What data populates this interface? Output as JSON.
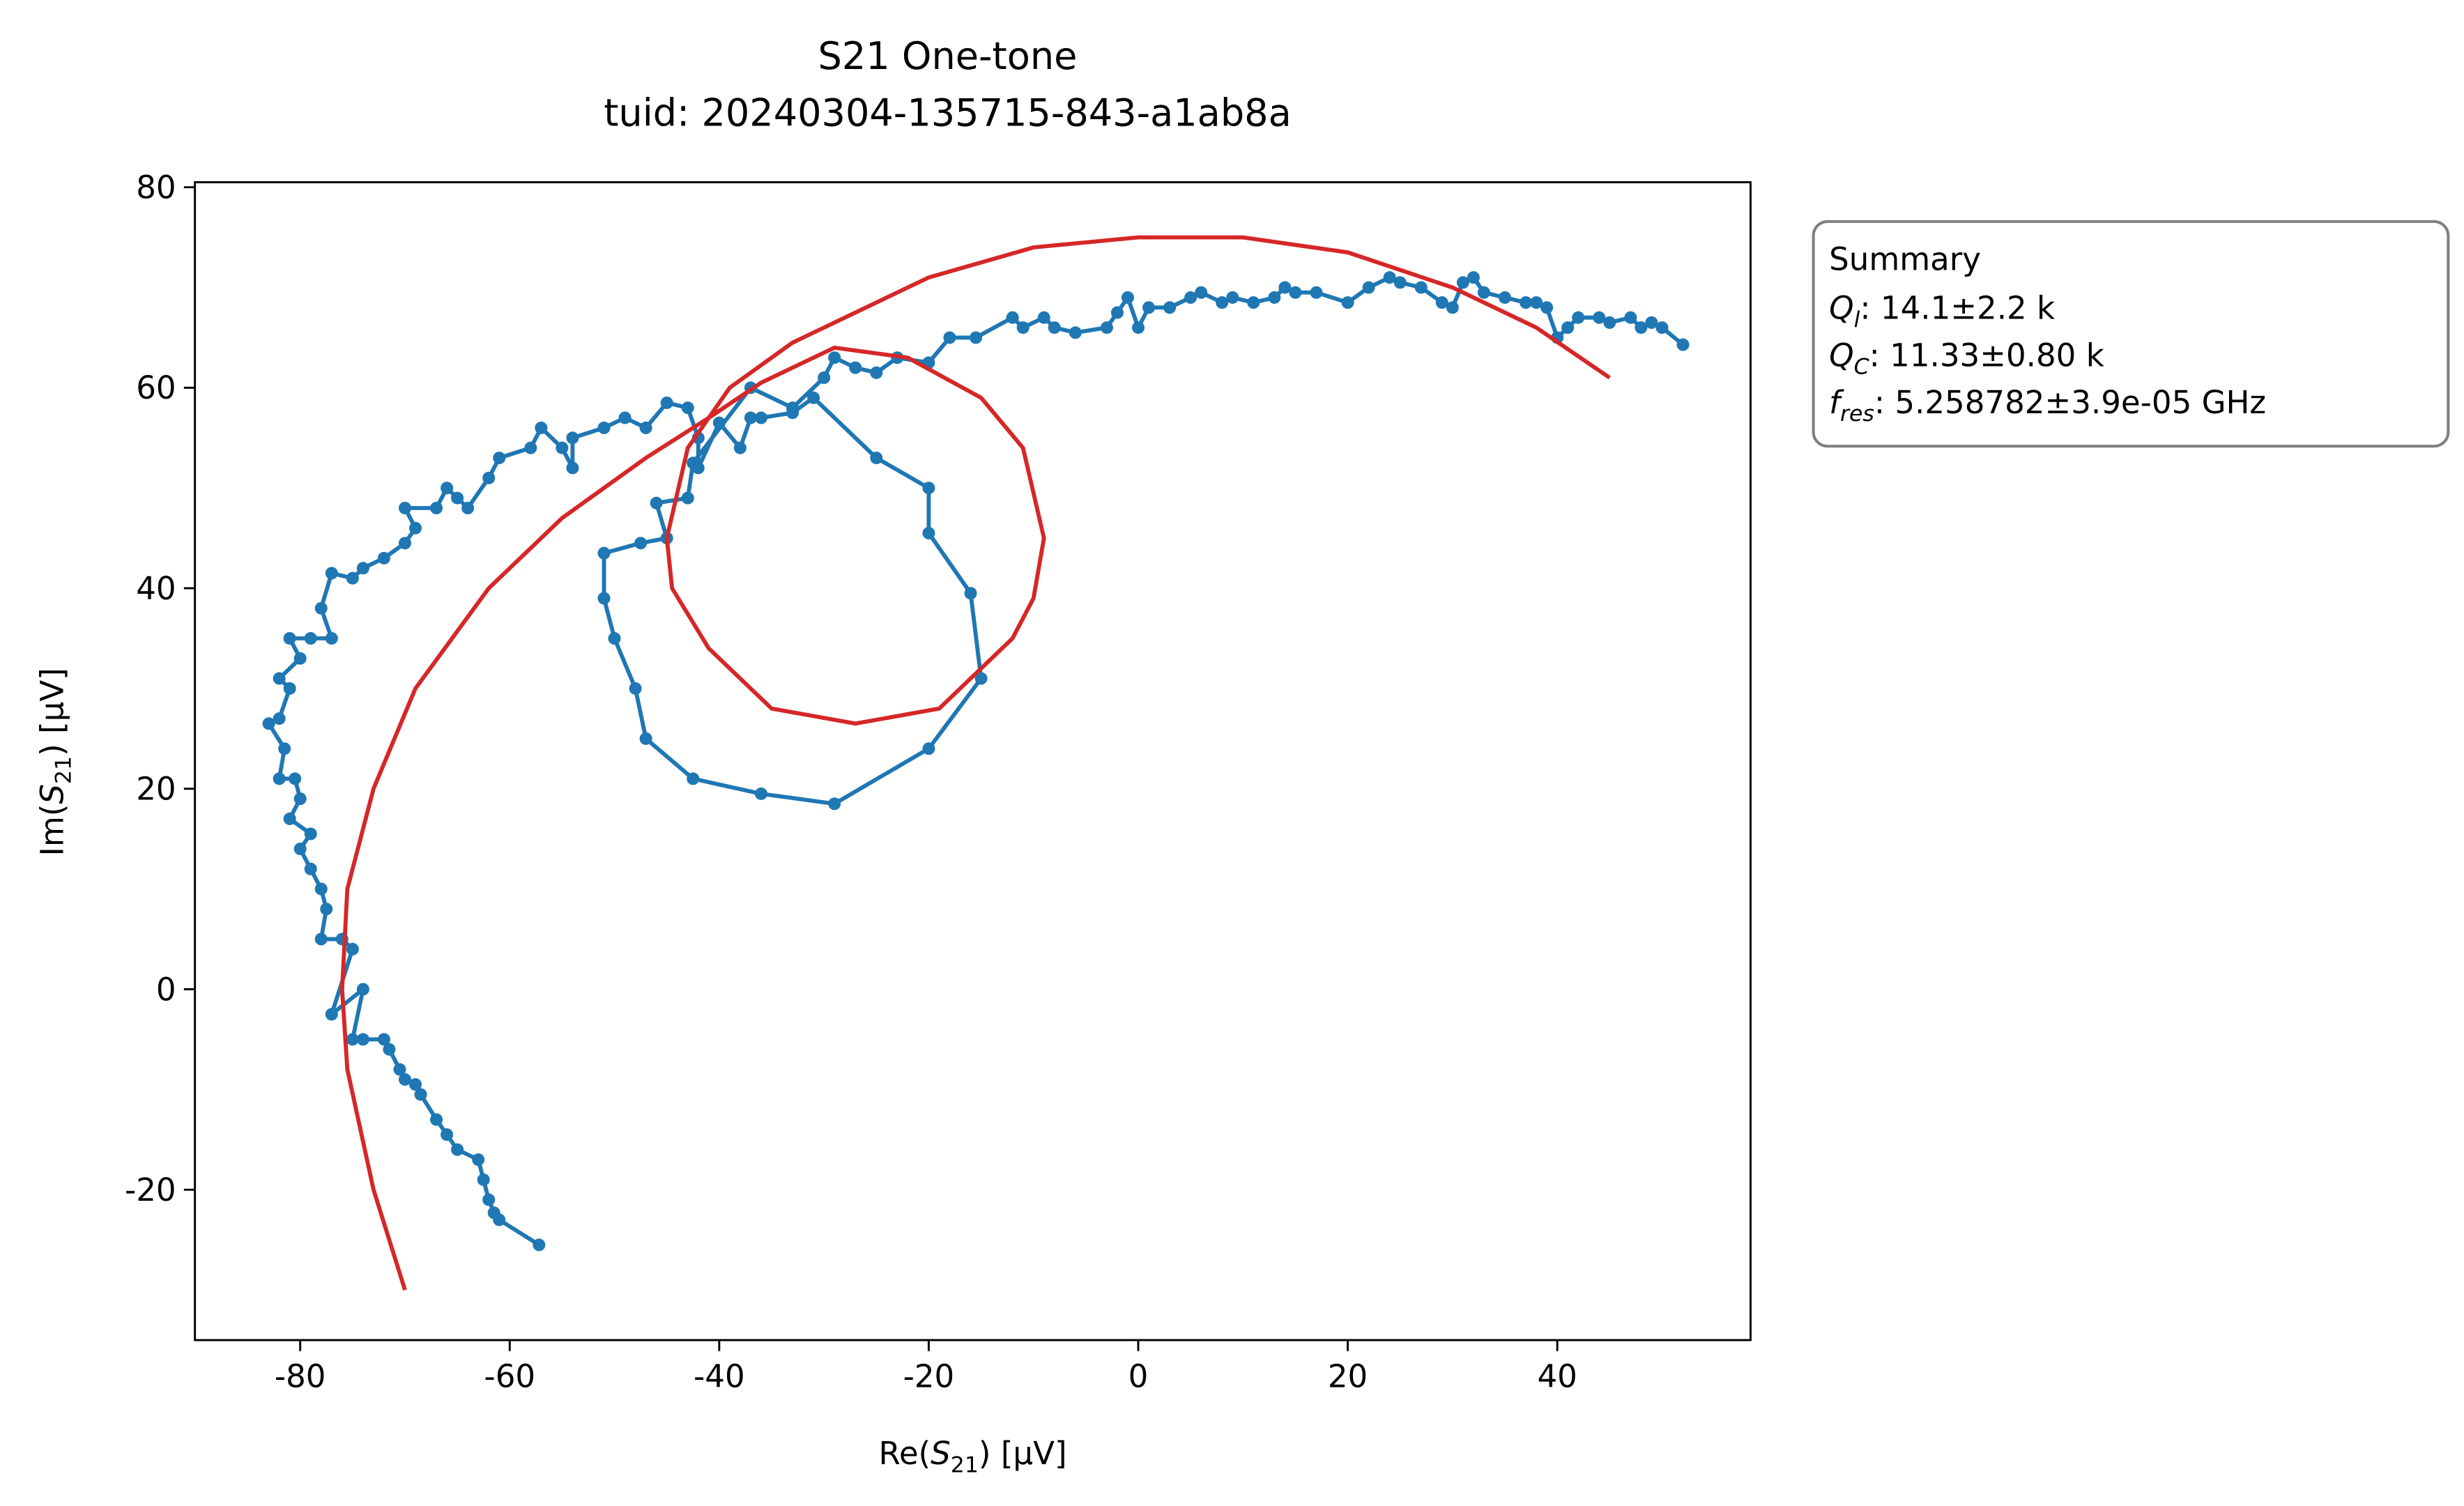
{
  "chart_data": {
    "type": "line",
    "title": "S21 One-tone",
    "subtitle": "tuid: 20240304-135715-843-a1ab8a",
    "xlabel": {
      "prefix": "Re(",
      "symbol": "S",
      "subscript": "21",
      "suffix": ") [µV]"
    },
    "ylabel": {
      "prefix": "Im(",
      "symbol": "S",
      "subscript": "21",
      "suffix": ") [µV]"
    },
    "xlim": [
      -90.05,
      58.45
    ],
    "ylim": [
      -35.0,
      80.5
    ],
    "xticks": [
      -80,
      -60,
      -40,
      -20,
      0,
      20,
      40
    ],
    "yticks": [
      -20,
      0,
      20,
      40,
      60,
      80
    ],
    "annotation": {
      "heading": "Summary",
      "lines": [
        {
          "symbol": "Q",
          "subscript": "l",
          "text": ": 14.1±2.2 k"
        },
        {
          "symbol": "Q",
          "subscript": "C",
          "text": ": 11.33±0.80 k"
        },
        {
          "symbol": "f",
          "subscript": "res",
          "text": ": 5.258782±3.9e-05 GHz"
        }
      ]
    },
    "series": [
      {
        "color": "#1f77b4",
        "marker": true,
        "x": [
          -57.2,
          -61,
          -61.5,
          -62,
          -62.5,
          -63,
          -65,
          -66,
          -67,
          -68.5,
          -69,
          -70,
          -70.5,
          -71.5,
          -72,
          -74,
          -75,
          -74,
          -77,
          -75,
          -76,
          -78,
          -77.5,
          -78,
          -79,
          -80,
          -79,
          -81,
          -80,
          -80.5,
          -82,
          -81.5,
          -83,
          -82,
          -81,
          -82,
          -80,
          -81,
          -79,
          -77,
          -78,
          -77,
          -75,
          -74,
          -72,
          -70,
          -69,
          -70,
          -67,
          -66,
          -65,
          -64,
          -62,
          -61,
          -58,
          -57,
          -55,
          -54,
          -54,
          -51,
          -49,
          -47,
          -45,
          -43,
          -42,
          -42,
          -40,
          -38,
          -37,
          -36,
          -33,
          -31,
          -25,
          -20,
          -20,
          -16,
          -15,
          -20,
          -29,
          -36,
          -42.5,
          -47,
          -48,
          -50,
          -51,
          -51,
          -47.5,
          -45,
          -46,
          -43,
          -42.5,
          -37,
          -33,
          -30,
          -29,
          -27,
          -25,
          -23,
          -20,
          -18,
          -15.5,
          -12,
          -11,
          -9,
          -8,
          -6,
          -3,
          -2,
          -1,
          0,
          1,
          3,
          5,
          6,
          8,
          9,
          11,
          13,
          14,
          15,
          17,
          20,
          22,
          24,
          25,
          27,
          29,
          30,
          31,
          32,
          33,
          35,
          37,
          38,
          39,
          40,
          41,
          42,
          44,
          45,
          47,
          48,
          49,
          50,
          52
        ],
        "values": [
          -25.5,
          -23,
          -22.3,
          -21,
          -19,
          -17,
          -16,
          -14.5,
          -13,
          -10.5,
          -9.5,
          -9,
          -8,
          -6,
          -5,
          -5,
          -5,
          0,
          -2.5,
          4,
          5,
          5,
          8,
          10,
          12,
          14,
          15.5,
          17,
          19,
          21,
          21,
          24,
          26.5,
          27,
          30,
          31,
          33,
          35,
          35,
          35,
          38,
          41.5,
          41,
          42,
          43,
          44.5,
          46,
          48,
          48,
          50,
          49,
          48,
          51,
          53,
          54,
          56,
          54,
          52,
          55,
          56,
          57,
          56,
          58.5,
          58,
          55,
          52,
          56.5,
          54,
          57,
          57,
          57.5,
          59,
          53,
          50,
          45.5,
          39.5,
          31,
          24,
          18.5,
          19.5,
          21,
          25,
          30,
          35,
          39,
          43.5,
          44.5,
          45,
          48.5,
          49,
          52.5,
          60,
          58,
          61,
          63,
          62,
          61.5,
          63,
          62.5,
          65,
          65,
          67,
          66,
          67,
          66,
          65.5,
          66,
          67.5,
          69,
          66,
          68,
          68,
          69,
          69.5,
          68.5,
          69,
          68.5,
          69,
          70,
          69.5,
          69.5,
          68.5,
          70,
          71,
          70.5,
          70,
          68.5,
          68,
          70.5,
          71,
          69.5,
          69,
          68.5,
          68.5,
          68,
          65,
          66,
          67,
          67,
          66.5,
          67,
          66,
          66.5,
          66,
          64.3
        ]
      },
      {
        "color": "#d62728",
        "marker": false,
        "x": [
          -70,
          -73,
          -75.5,
          -76,
          -75.5,
          -73,
          -69,
          -62,
          -55,
          -47,
          -41,
          -36,
          -29,
          -22,
          -15,
          -11,
          -9,
          -10,
          -12,
          -19,
          -27,
          -35,
          -41,
          -44.5,
          -45,
          -43,
          -39,
          -33,
          -26,
          -20,
          -10,
          0,
          10,
          20,
          30,
          38,
          45
        ],
        "values": [
          -30,
          -20,
          -8,
          0,
          10,
          20,
          30,
          40,
          47,
          53,
          57,
          60.5,
          64,
          63,
          59,
          54,
          45,
          39,
          35,
          28,
          26.5,
          28,
          34,
          40,
          45,
          54,
          60,
          64.5,
          68,
          71,
          74,
          75,
          75,
          73.5,
          70,
          66,
          61
        ]
      }
    ]
  }
}
